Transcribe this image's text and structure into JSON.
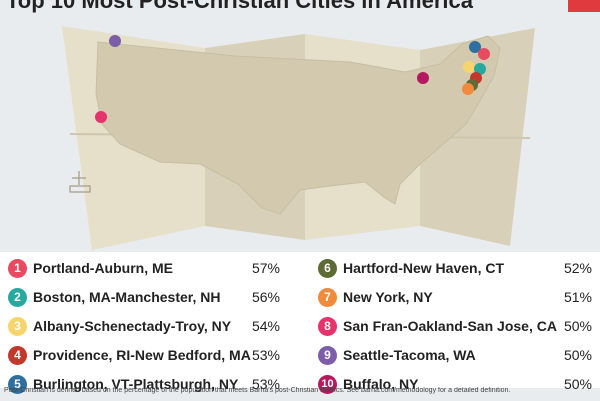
{
  "title": "Top 10 Most Post-Christian Cities in America",
  "colors": {
    "background": "#e9ecef",
    "map_paper": "#e4dcc7",
    "map_land": "#d4ccb3",
    "accent_red": "#e0393e"
  },
  "cities": [
    {
      "rank": "1",
      "name": "Portland-Auburn, ME",
      "pct": "57%",
      "color": "#e84a5f"
    },
    {
      "rank": "2",
      "name": "Boston, MA-Manchester, NH",
      "pct": "56%",
      "color": "#27a9a0"
    },
    {
      "rank": "3",
      "name": "Albany-Schenectady-Troy, NY",
      "pct": "54%",
      "color": "#f7d46c"
    },
    {
      "rank": "4",
      "name": "Providence, RI-New Bedford, MA",
      "pct": "53%",
      "color": "#c0392b"
    },
    {
      "rank": "5",
      "name": "Burlington, VT-Plattsburgh, NY",
      "pct": "53%",
      "color": "#2f6f9f"
    },
    {
      "rank": "6",
      "name": "Hartford-New Haven, CT",
      "pct": "52%",
      "color": "#5d6b35"
    },
    {
      "rank": "7",
      "name": "New York, NY",
      "pct": "51%",
      "color": "#f08a3c"
    },
    {
      "rank": "8",
      "name": "San Fran-Oakland-San Jose, CA",
      "pct": "50%",
      "color": "#e6336e"
    },
    {
      "rank": "9",
      "name": "Seattle-Tacoma, WA",
      "pct": "50%",
      "color": "#7b5ea7"
    },
    {
      "rank": "10",
      "name": "Buffalo, NY",
      "pct": "50%",
      "color": "#b5195f"
    }
  ],
  "footnote": "Post-Christian is defined based on the percentage of the population that meets Barna's post-Christian metrics. See barna.com/methodology for a detailed definition."
}
